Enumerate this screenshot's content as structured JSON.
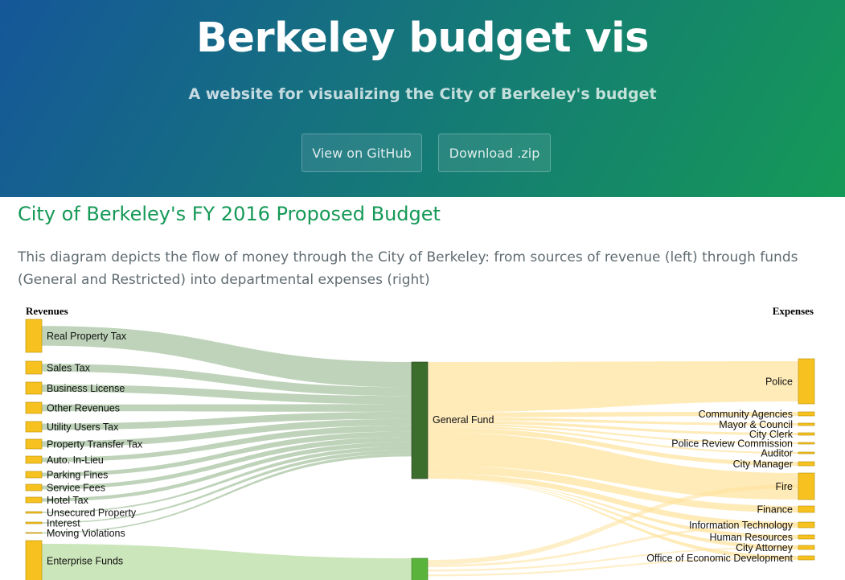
{
  "header": {
    "title": "Berkeley budget vis",
    "tagline": "A website for visualizing the City of Berkeley's budget",
    "github_button": "View on GitHub",
    "download_button": "Download .zip"
  },
  "main": {
    "heading": "City of Berkeley's FY 2016 Proposed Budget",
    "description": "This diagram depicts the flow of money through the City of Berkeley: from sources of revenue (left) through funds (General and Restricted) into departmental expenses (right)"
  },
  "diagram": {
    "left_column_label": "Revenues",
    "right_column_label": "Expenses",
    "colors": {
      "node": "#f7c21f",
      "general_fund": "#3b6d2d",
      "enterprise_fund": "#5ab33a",
      "revenue_link": "#a8c4a1",
      "enterprise_link": "#c7e3b4",
      "expense_link": "#ffe29a"
    },
    "revenues": [
      "Real Property Tax",
      "Sales Tax",
      "Business License",
      "Other Revenues",
      "Utility Users Tax",
      "Property Transfer Tax",
      "Auto. In-Lieu",
      "Parking Fines",
      "Service Fees",
      "Hotel Tax",
      "Unsecured Property",
      "Interest",
      "Moving Violations",
      "Enterprise Funds"
    ],
    "funds": [
      "General Fund"
    ],
    "expenses": [
      "Police",
      "Community Agencies",
      "Mayor & Council",
      "City Clerk",
      "Police Review Commission",
      "Auditor",
      "City Manager",
      "Fire",
      "Finance",
      "Information Technology",
      "Human Resources",
      "City Attorney",
      "Office of Economic Development"
    ]
  }
}
